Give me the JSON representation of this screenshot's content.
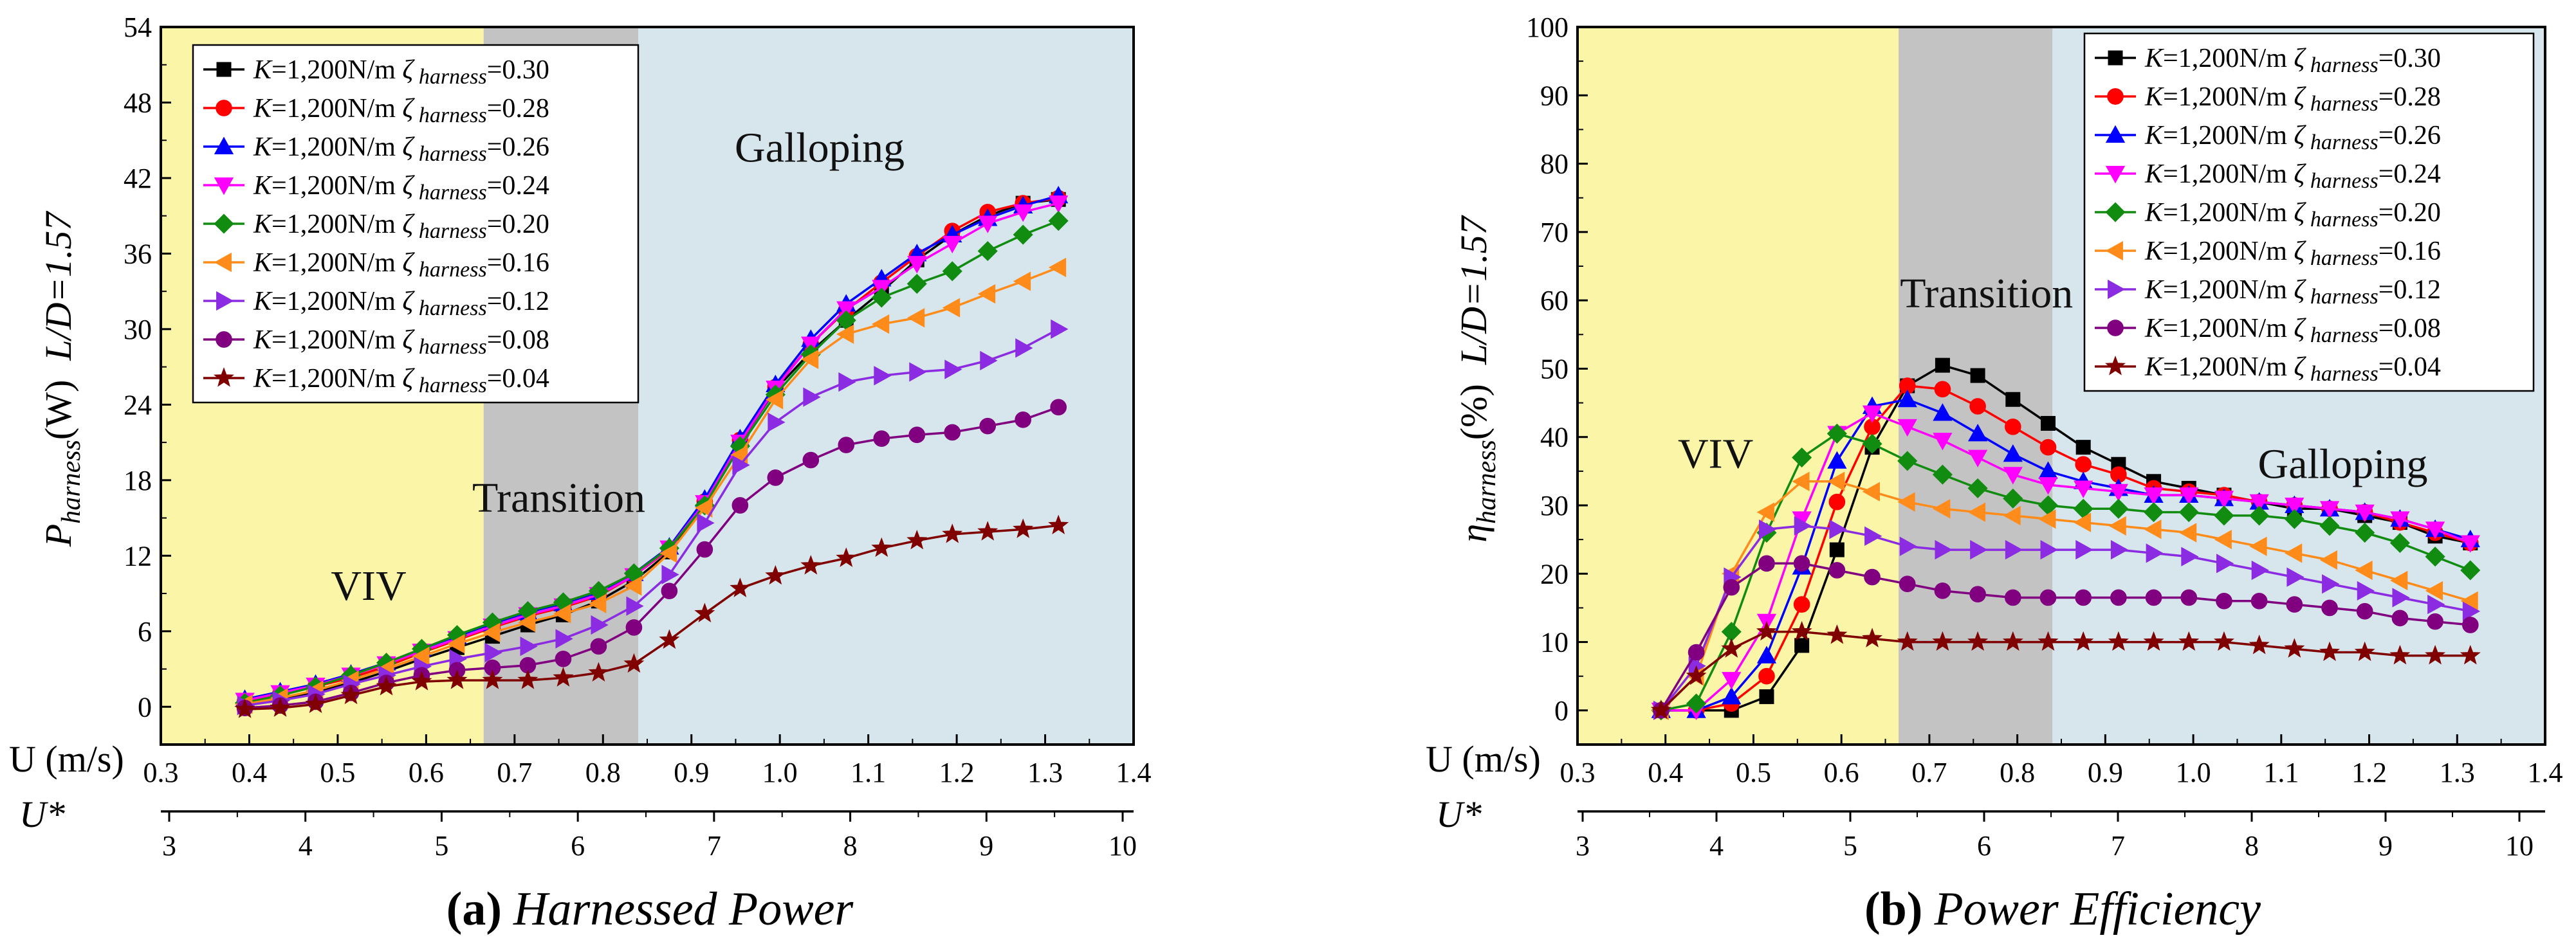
{
  "chart_data": [
    {
      "id": "a",
      "type": "line",
      "caption_letter": "(a)",
      "caption_text": "Harnessed Power",
      "xlabel": "U (m/s)",
      "x2label": "U*",
      "ylabel_main": "P",
      "ylabel_sub": "harness",
      "ylabel_unit": "(W)",
      "ylabel_ld": "L/D=1.57",
      "xlim": [
        0.3,
        1.4
      ],
      "ylim": [
        -3,
        54
      ],
      "x_ticks": [
        0.3,
        0.4,
        0.5,
        0.6,
        0.7,
        0.8,
        0.9,
        1.0,
        1.1,
        1.2,
        1.3,
        1.4
      ],
      "x_tick_labels": [
        "0.3",
        "0.4",
        "0.5",
        "0.6",
        "0.7",
        "0.8",
        "0.9",
        "1.0",
        "1.1",
        "1.2",
        "1.3",
        "1.4"
      ],
      "y_ticks": [
        0,
        6,
        12,
        18,
        24,
        30,
        36,
        42,
        48,
        54
      ],
      "y_tick_labels": [
        "0",
        "6",
        "12",
        "18",
        "24",
        "30",
        "36",
        "42",
        "48",
        "54"
      ],
      "u_star_ticks": [
        3,
        4,
        5,
        6,
        7,
        8,
        9,
        10
      ],
      "u_star_tick_labels": [
        "3",
        "4",
        "5",
        "6",
        "7",
        "8",
        "9",
        "10"
      ],
      "regions": [
        {
          "name": "VIV",
          "x0": 0.3,
          "x1": 0.665,
          "color": "#fbf5a8",
          "label_x": 0.535,
          "label_y": 8.5
        },
        {
          "name": "Transition",
          "x0": 0.665,
          "x1": 0.84,
          "color": "#c3c3c3",
          "label_x": 0.75,
          "label_y": 15.5
        },
        {
          "name": "Galloping",
          "x0": 0.84,
          "x1": 1.4,
          "color": "#d6e6ec",
          "label_x": 1.045,
          "label_y": 43.3
        }
      ],
      "x": [
        0.395,
        0.435,
        0.475,
        0.515,
        0.555,
        0.595,
        0.635,
        0.675,
        0.715,
        0.755,
        0.795,
        0.835,
        0.875,
        0.915,
        0.955,
        0.995,
        1.035,
        1.075,
        1.115,
        1.155,
        1.195,
        1.235,
        1.275,
        1.315
      ],
      "series": [
        {
          "name": "K=1,200N/m  ζharness=0.30",
          "k_label": "K",
          "k_value": "=1,200N/m",
          "zeta_label": "ζ",
          "zeta_sub": "harness",
          "zeta_value": "=0.30",
          "color": "#000000",
          "marker": "square",
          "values": [
            0.2,
            0.6,
            1.2,
            1.9,
            2.8,
            3.8,
            4.7,
            5.6,
            6.5,
            7.3,
            8.4,
            10.0,
            12.3,
            16.1,
            21.0,
            25.2,
            28.2,
            30.7,
            33.0,
            35.5,
            37.5,
            39.0,
            40.0,
            40.3
          ]
        },
        {
          "name": "K=1,200N/m  ζharness=0.28",
          "k_label": "K",
          "k_value": "=1,200N/m",
          "zeta_label": "ζ",
          "zeta_sub": "harness",
          "zeta_value": "=0.28",
          "color": "#ff0000",
          "marker": "circle",
          "values": [
            0.4,
            1.0,
            1.6,
            2.3,
            3.2,
            4.3,
            5.3,
            6.3,
            7.2,
            7.9,
            8.8,
            10.4,
            12.5,
            16.3,
            21.2,
            25.4,
            28.8,
            31.5,
            33.7,
            35.8,
            37.8,
            39.3,
            40.0,
            40.4
          ]
        },
        {
          "name": "K=1,200N/m  ζharness=0.26",
          "k_label": "K",
          "k_value": "=1,200N/m",
          "zeta_label": "ζ",
          "zeta_sub": "harness",
          "zeta_value": "=0.26",
          "color": "#0000ff",
          "marker": "triangle-up",
          "values": [
            0.6,
            1.2,
            1.8,
            2.6,
            3.5,
            4.6,
            5.6,
            6.6,
            7.5,
            8.2,
            9.1,
            10.6,
            12.7,
            16.5,
            21.3,
            25.6,
            29.2,
            32.0,
            34.0,
            36.0,
            37.5,
            38.8,
            39.8,
            40.6
          ]
        },
        {
          "name": "K=1,200N/m  ζharness=0.24",
          "k_label": "K",
          "k_value": "=1,200N/m",
          "zeta_label": "ζ",
          "zeta_sub": "harness",
          "zeta_value": "=0.24",
          "color": "#ff00ff",
          "marker": "triangle-down",
          "values": [
            0.5,
            1.1,
            1.7,
            2.5,
            3.4,
            4.4,
            5.4,
            6.4,
            7.3,
            8.0,
            8.9,
            10.4,
            12.6,
            16.2,
            21.0,
            25.3,
            28.8,
            31.6,
            33.3,
            35.2,
            36.8,
            38.4,
            39.3,
            40.0
          ]
        },
        {
          "name": "K=1,200N/m  ζharness=0.20",
          "k_label": "K",
          "k_value": "=1,200N/m",
          "zeta_label": "ζ",
          "zeta_sub": "harness",
          "zeta_value": "=0.20",
          "color": "#118c11",
          "marker": "diamond",
          "values": [
            0.3,
            0.9,
            1.6,
            2.5,
            3.5,
            4.6,
            5.7,
            6.7,
            7.6,
            8.3,
            9.2,
            10.6,
            12.6,
            16.0,
            20.7,
            24.8,
            28.0,
            30.7,
            32.5,
            33.6,
            34.6,
            36.2,
            37.5,
            38.6
          ]
        },
        {
          "name": "K=1,200N/m  ζharness=0.16",
          "k_label": "K",
          "k_value": "=1,200N/m",
          "zeta_label": "ζ",
          "zeta_sub": "harness",
          "zeta_value": "=0.16",
          "color": "#ff8c1a",
          "marker": "triangle-left",
          "values": [
            0.2,
            0.7,
            1.3,
            2.1,
            3.0,
            4.0,
            5.0,
            5.9,
            6.7,
            7.4,
            8.2,
            9.6,
            12.2,
            15.8,
            20.0,
            24.4,
            27.6,
            29.6,
            30.4,
            30.9,
            31.7,
            32.8,
            33.8,
            34.9
          ]
        },
        {
          "name": "K=1,200N/m  ζharness=0.12",
          "k_label": "K",
          "k_value": "=1,200N/m",
          "zeta_label": "ζ",
          "zeta_sub": "harness",
          "zeta_value": "=0.12",
          "color": "#8b2be2",
          "marker": "triangle-right",
          "values": [
            0.1,
            0.5,
            1.0,
            1.8,
            2.5,
            3.2,
            3.8,
            4.3,
            4.8,
            5.4,
            6.5,
            8.0,
            10.5,
            14.6,
            19.2,
            22.6,
            24.6,
            25.8,
            26.3,
            26.6,
            26.8,
            27.5,
            28.5,
            30.0
          ]
        },
        {
          "name": "K=1,200N/m  ζharness=0.08",
          "k_label": "K",
          "k_value": "=1,200N/m",
          "zeta_label": "ζ",
          "zeta_sub": "harness",
          "zeta_value": "=0.08",
          "color": "#800080",
          "marker": "circle",
          "values": [
            -0.1,
            0.1,
            0.4,
            1.1,
            1.9,
            2.5,
            2.9,
            3.1,
            3.3,
            3.8,
            4.8,
            6.3,
            9.2,
            12.5,
            16.0,
            18.2,
            19.6,
            20.8,
            21.3,
            21.6,
            21.8,
            22.3,
            22.8,
            23.8
          ]
        },
        {
          "name": "K=1,200N/m  ζharness=0.04",
          "k_label": "K",
          "k_value": "=1,200N/m",
          "zeta_label": "ζ",
          "zeta_sub": "harness",
          "zeta_value": "=0.04",
          "color": "#800000",
          "marker": "star",
          "values": [
            -0.2,
            -0.1,
            0.2,
            0.9,
            1.6,
            2.0,
            2.1,
            2.1,
            2.1,
            2.3,
            2.7,
            3.4,
            5.3,
            7.4,
            9.4,
            10.4,
            11.2,
            11.8,
            12.6,
            13.2,
            13.7,
            13.9,
            14.1,
            14.4
          ]
        }
      ]
    },
    {
      "id": "b",
      "type": "line",
      "caption_letter": "(b)",
      "caption_text": "Power Efficiency",
      "xlabel": "U (m/s)",
      "x2label": "U*",
      "ylabel_main": "η",
      "ylabel_sub": "harness",
      "ylabel_unit": "(%)",
      "ylabel_ld": "L/D=1.57",
      "xlim": [
        0.3,
        1.4
      ],
      "ylim": [
        -5,
        100
      ],
      "x_ticks": [
        0.3,
        0.4,
        0.5,
        0.6,
        0.7,
        0.8,
        0.9,
        1.0,
        1.1,
        1.2,
        1.3,
        1.4
      ],
      "x_tick_labels": [
        "0.3",
        "0.4",
        "0.5",
        "0.6",
        "0.7",
        "0.8",
        "0.9",
        "1.0",
        "1.1",
        "1.2",
        "1.3",
        "1.4"
      ],
      "y_ticks": [
        0,
        10,
        20,
        30,
        40,
        50,
        60,
        70,
        80,
        90,
        100
      ],
      "y_tick_labels": [
        "0",
        "10",
        "20",
        "30",
        "40",
        "50",
        "60",
        "70",
        "80",
        "90",
        "100"
      ],
      "u_star_ticks": [
        3,
        4,
        5,
        6,
        7,
        8,
        9,
        10
      ],
      "u_star_tick_labels": [
        "3",
        "4",
        "5",
        "6",
        "7",
        "8",
        "9",
        "10"
      ],
      "regions": [
        {
          "name": "VIV",
          "x0": 0.3,
          "x1": 0.665,
          "color": "#fbf5a8",
          "label_x": 0.457,
          "label_y": 35.5
        },
        {
          "name": "Transition",
          "x0": 0.665,
          "x1": 0.84,
          "color": "#c3c3c3",
          "label_x": 0.765,
          "label_y": 59
        },
        {
          "name": "Galloping",
          "x0": 0.84,
          "x1": 1.4,
          "color": "#d6e6ec",
          "label_x": 1.17,
          "label_y": 34
        }
      ],
      "x": [
        0.395,
        0.435,
        0.475,
        0.515,
        0.555,
        0.595,
        0.635,
        0.675,
        0.715,
        0.755,
        0.795,
        0.835,
        0.875,
        0.915,
        0.955,
        0.995,
        1.035,
        1.075,
        1.115,
        1.155,
        1.195,
        1.235,
        1.275,
        1.315
      ],
      "series": [
        {
          "name": "K=1,200N/m  ζharness=0.30",
          "color": "#000000",
          "marker": "square",
          "values": [
            0,
            0,
            0,
            2,
            9.5,
            23.5,
            38.5,
            47.5,
            50.5,
            49,
            45.5,
            42,
            38.5,
            36,
            33.5,
            32.5,
            31.5,
            30.5,
            29.5,
            29.5,
            28.5,
            27.5,
            25.5,
            24.5
          ]
        },
        {
          "name": "K=1,200N/m  ζharness=0.28",
          "color": "#ff0000",
          "marker": "circle",
          "values": [
            0,
            0,
            1,
            5,
            15.5,
            30.5,
            41.5,
            47.5,
            47,
            44.5,
            41.5,
            38.5,
            36,
            34.5,
            32.5,
            32,
            31.5,
            30.5,
            30,
            29.5,
            29,
            27.5,
            26,
            24.5
          ]
        },
        {
          "name": "K=1,200N/m  ζharness=0.26",
          "color": "#0000ff",
          "marker": "triangle-up",
          "values": [
            0,
            0,
            2,
            8,
            21,
            36.5,
            44.5,
            45.5,
            43.5,
            40.5,
            37.5,
            35,
            33.5,
            32.5,
            31.5,
            31.5,
            31,
            30.5,
            30,
            29.5,
            29,
            28,
            26.5,
            25
          ]
        },
        {
          "name": "K=1,200N/m  ζharness=0.24",
          "color": "#ff00ff",
          "marker": "triangle-down",
          "values": [
            0,
            0,
            4.5,
            13,
            28,
            40.5,
            43.5,
            41.5,
            39.5,
            37,
            34.5,
            33,
            32.5,
            32,
            31.5,
            31.5,
            31,
            30.5,
            30,
            29.5,
            29,
            28,
            26.5,
            24.5
          ]
        },
        {
          "name": "K=1,200N/m  ζharness=0.20",
          "color": "#118c11",
          "marker": "diamond",
          "values": [
            0,
            1,
            11.5,
            26,
            37,
            40.5,
            39,
            36.5,
            34.5,
            32.5,
            31,
            30,
            29.5,
            29.5,
            29,
            29,
            28.5,
            28.5,
            28,
            27,
            26,
            24.5,
            22.5,
            20.5
          ]
        },
        {
          "name": "K=1,200N/m  ζharness=0.16",
          "color": "#ff8c1a",
          "marker": "triangle-left",
          "values": [
            0,
            5,
            20,
            29,
            33.5,
            33.5,
            32,
            30.5,
            29.5,
            29,
            28.5,
            28,
            27.5,
            27,
            26.5,
            26,
            25,
            24,
            23,
            22,
            20.5,
            19,
            17.5,
            16
          ]
        },
        {
          "name": "K=1,200N/m  ζharness=0.12",
          "color": "#8b2be2",
          "marker": "triangle-right",
          "values": [
            0,
            6.5,
            19.5,
            26.5,
            27,
            26.5,
            25.5,
            24,
            23.5,
            23.5,
            23.5,
            23.5,
            23.5,
            23.5,
            23,
            22.5,
            21.5,
            20.5,
            19.5,
            18.5,
            17.5,
            16.5,
            15.5,
            14.5
          ]
        },
        {
          "name": "K=1,200N/m  ζharness=0.08",
          "color": "#800080",
          "marker": "circle",
          "values": [
            0,
            8.5,
            18,
            21.5,
            21.5,
            20.5,
            19.5,
            18.5,
            17.5,
            17,
            16.5,
            16.5,
            16.5,
            16.5,
            16.5,
            16.5,
            16,
            16,
            15.5,
            15,
            14.5,
            13.5,
            13,
            12.5
          ]
        },
        {
          "name": "K=1,200N/m  ζharness=0.04",
          "color": "#800000",
          "marker": "star",
          "values": [
            0,
            5,
            9,
            11.5,
            11.5,
            11,
            10.5,
            10,
            10,
            10,
            10,
            10,
            10,
            10,
            10,
            10,
            10,
            9.5,
            9,
            8.5,
            8.5,
            8,
            8,
            8
          ]
        }
      ]
    }
  ]
}
